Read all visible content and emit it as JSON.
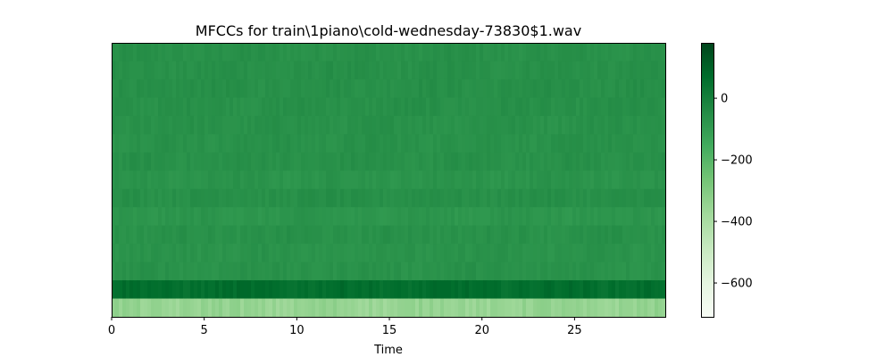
{
  "chart_data": {
    "type": "heatmap",
    "title": "MFCCs for train\\1piano\\cold-wednesday-73830$1.wav",
    "xlabel": "Time",
    "ylabel": "",
    "xlim": [
      0,
      29.9
    ],
    "x_ticks": [
      0,
      5,
      10,
      15,
      20,
      25
    ],
    "x_tick_labels": [
      "0",
      "5",
      "10",
      "15",
      "20",
      "25"
    ],
    "y_ticks_shown": false,
    "n_coefficients": 15,
    "coefficient_order": "top-to-bottom: coefficient 15 ... coefficient 1 (bottom band)",
    "coefficient_means": [
      -62,
      -60,
      -58,
      -60,
      -63,
      -64,
      -62,
      -72,
      -57,
      -78,
      -64,
      -70,
      -66,
      62,
      -350
    ],
    "colormap": "Greens",
    "colorbar": {
      "vmin": -710,
      "vmax": 180,
      "ticks": [
        0,
        -200,
        -400,
        -600
      ],
      "tick_labels": [
        "0",
        "−200",
        "−400",
        "−600"
      ]
    },
    "colors": {
      "low": "#f7fcf5",
      "high": "#00441b"
    }
  }
}
